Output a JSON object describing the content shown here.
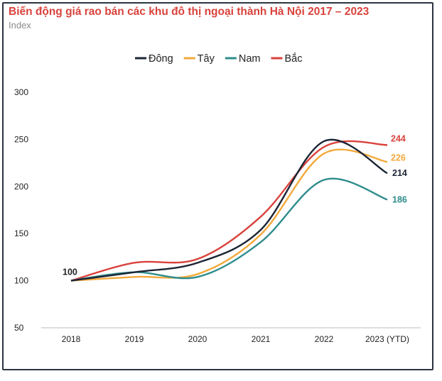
{
  "chart_data": {
    "type": "line",
    "title": "Biến động giá rao bán các khu đô thị ngoại thành Hà Nội 2017 – 2023",
    "subtitle": "Index",
    "categories": [
      "2018",
      "2019",
      "2020",
      "2021",
      "2022",
      "2023 (YTD)"
    ],
    "ylim": [
      50,
      300
    ],
    "yticks": [
      50,
      100,
      150,
      200,
      250,
      300
    ],
    "grid": false,
    "legend_placement": "top-center",
    "series": [
      {
        "name": "Đông",
        "color": "#1c2535",
        "values": [
          100,
          109,
          119,
          154,
          248,
          214
        ]
      },
      {
        "name": "Tây",
        "color": "#f2a93b",
        "values": [
          100,
          104,
          107,
          149,
          235,
          226
        ]
      },
      {
        "name": "Nam",
        "color": "#2e8c8c",
        "values": [
          100,
          109,
          104,
          141,
          207,
          186
        ]
      },
      {
        "name": "Bắc",
        "color": "#d9423c",
        "values": [
          100,
          119,
          123,
          168,
          242,
          244
        ]
      }
    ],
    "annotations": [
      {
        "text": "100",
        "series": "Đông",
        "index": 0,
        "color": "#222222"
      },
      {
        "text": "244",
        "series": "Bắc",
        "index": 5,
        "color": "#d9423c"
      },
      {
        "text": "226",
        "series": "Tây",
        "index": 5,
        "color": "#f2a93b"
      },
      {
        "text": "214",
        "series": "Đông",
        "index": 5,
        "color": "#1c2535"
      },
      {
        "text": "186",
        "series": "Nam",
        "index": 5,
        "color": "#2e8c8c"
      }
    ]
  }
}
